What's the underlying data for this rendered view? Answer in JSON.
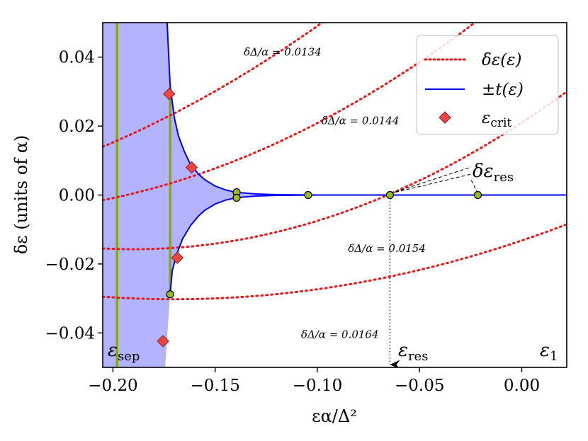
{
  "chart_data": {
    "type": "line",
    "xlabel": "εα/Δ²",
    "ylabel": "δε (units of α)",
    "xlim": [
      -0.205,
      0.022
    ],
    "ylim": [
      -0.05,
      0.05
    ],
    "x_ticks": [
      -0.2,
      -0.15,
      -0.1,
      -0.05,
      0.0
    ],
    "x_tick_labels": [
      "−0.20",
      "−0.15",
      "−0.10",
      "−0.05",
      "0.00"
    ],
    "y_ticks": [
      0.04,
      0.02,
      0.0,
      -0.02,
      -0.04
    ],
    "y_tick_labels": [
      "0.04",
      "0.02",
      "0.00",
      "−0.02",
      "−0.04"
    ],
    "grid": false,
    "legend_position": "top-right",
    "legend": [
      {
        "label": "δε(ε)",
        "style": "dotted",
        "color": "#e31a1c"
      },
      {
        "label": "±t(ε)",
        "style": "solid",
        "color": "#0000ee"
      },
      {
        "label": "ε",
        "label_sub": "crit",
        "style": "diamond",
        "color": "#ee4444"
      }
    ],
    "envelope": {
      "fill_color": "#b3b3ff",
      "line_color": "#0000ee",
      "points": [
        [
          -0.1735,
          0.05
        ],
        [
          -0.172,
          0.0315
        ],
        [
          -0.17,
          0.0225
        ],
        [
          -0.168,
          0.0172
        ],
        [
          -0.165,
          0.0125
        ],
        [
          -0.162,
          0.0088
        ],
        [
          -0.158,
          0.006
        ],
        [
          -0.155,
          0.0044
        ],
        [
          -0.15,
          0.0026
        ],
        [
          -0.145,
          0.0015
        ],
        [
          -0.14,
          0.0008
        ],
        [
          -0.13,
          0.0003
        ],
        [
          -0.12,
          0.0001
        ],
        [
          -0.1,
          0.0
        ],
        [
          0.022,
          0.0
        ]
      ],
      "lower_points": [
        [
          -0.172,
          -0.0285
        ],
        [
          -0.171,
          -0.022
        ],
        [
          -0.169,
          -0.0175
        ],
        [
          -0.166,
          -0.0128
        ],
        [
          -0.162,
          -0.0088
        ],
        [
          -0.158,
          -0.006
        ],
        [
          -0.155,
          -0.0044
        ],
        [
          -0.15,
          -0.0026
        ],
        [
          -0.145,
          -0.0015
        ],
        [
          -0.14,
          -0.0008
        ],
        [
          -0.13,
          -0.0003
        ],
        [
          -0.12,
          -0.0001
        ],
        [
          -0.1,
          0.0
        ],
        [
          0.022,
          0.0
        ]
      ]
    },
    "dotted_series": [
      {
        "label": "δΔ/α = 0.0134",
        "color": "#e31a1c",
        "x0": -0.205,
        "y0": 0.014,
        "xp": 0.022,
        "yp": 0.112,
        "xmin": -0.36
      },
      {
        "label": "δΔ/α = 0.0144",
        "color": "#e31a1c",
        "x0": -0.205,
        "y0": -0.0015,
        "xp": 0.022,
        "yp": 0.072,
        "xmin": -0.27
      },
      {
        "label": "δΔ/α = 0.0154",
        "color": "#e31a1c",
        "x0": -0.205,
        "y0": -0.0155,
        "xp": 0.022,
        "yp": 0.03,
        "xmin": -0.19
      },
      {
        "label": "δΔ/α = 0.0164",
        "color": "#e31a1c",
        "x0": -0.205,
        "y0": -0.0295,
        "xp": 0.022,
        "yp": -0.0085,
        "xmin": -0.17
      }
    ],
    "curve_labels": [
      {
        "text": "δΔ/α = 0.0134",
        "x": -0.136,
        "y": 0.0405
      },
      {
        "text": "δΔ/α = 0.0144",
        "x": -0.098,
        "y": 0.0205
      },
      {
        "text": "δΔ/α = 0.0154",
        "x": -0.085,
        "y": -0.0165
      },
      {
        "text": "δΔ/α = 0.0164",
        "x": -0.108,
        "y": -0.0415
      }
    ],
    "vertical_lines": [
      {
        "x": -0.198,
        "color": "#88aa00"
      },
      {
        "x": -0.172,
        "y_top": 0.0295,
        "y_bottom": -0.0285,
        "color": "#88aa00"
      }
    ],
    "crit_points": [
      [
        -0.1725,
        0.0293
      ],
      [
        -0.1615,
        0.008
      ],
      [
        -0.1685,
        -0.0182
      ],
      [
        -0.1755,
        -0.0424
      ]
    ],
    "green_points": [
      [
        -0.1395,
        0.0008
      ],
      [
        -0.1395,
        -0.0008
      ],
      [
        -0.172,
        -0.0288
      ],
      [
        -0.1045,
        0.0
      ],
      [
        -0.0645,
        0.0
      ],
      [
        -0.0215,
        0.0
      ]
    ],
    "annotations": {
      "delta_eps_res": {
        "text": "δε",
        "sub": "res"
      },
      "eps_res": {
        "text": "ε",
        "sub": "res"
      },
      "eps_sep": {
        "text": "ε",
        "sub": "sep"
      },
      "eps_1": {
        "text": "ε",
        "sub": "1"
      }
    },
    "res_x": -0.0645
  }
}
